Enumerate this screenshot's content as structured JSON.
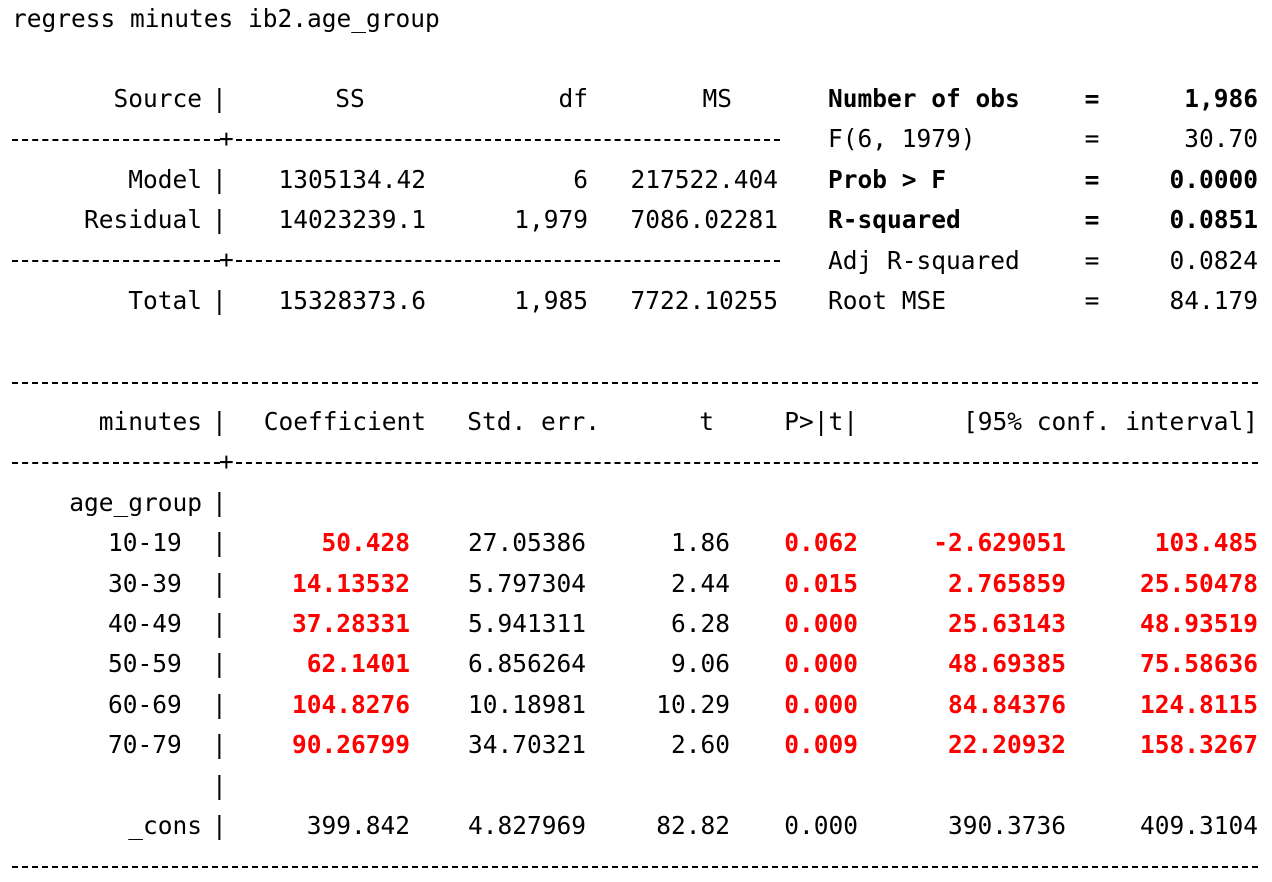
{
  "command": "regress minutes ib2.age_group",
  "anova": {
    "headers": {
      "source": "Source",
      "ss": "SS",
      "df": "df",
      "ms": "MS"
    },
    "rows": [
      {
        "source": "Model",
        "ss": "1305134.42",
        "df": "6",
        "ms": "217522.404"
      },
      {
        "source": "Residual",
        "ss": "14023239.1",
        "df": "1,979",
        "ms": "7086.02281"
      },
      {
        "source": "Total",
        "ss": "15328373.6",
        "df": "1,985",
        "ms": "7722.10255"
      }
    ]
  },
  "stats": [
    {
      "label": "Number of obs",
      "eq": "=",
      "value": "1,986",
      "bold": true
    },
    {
      "label": "F(6, 1979)",
      "eq": "=",
      "value": "30.70",
      "bold": false
    },
    {
      "label": "Prob > F",
      "eq": "=",
      "value": "0.0000",
      "bold": true
    },
    {
      "label": "R-squared",
      "eq": "=",
      "value": "0.0851",
      "bold": true
    },
    {
      "label": "Adj R-squared",
      "eq": "=",
      "value": "0.0824",
      "bold": false
    },
    {
      "label": "Root MSE",
      "eq": "=",
      "value": "84.179",
      "bold": false
    }
  ],
  "coef": {
    "headers": {
      "var": "minutes",
      "coef": "Coefficient",
      "se": "Std. err.",
      "t": "t",
      "p": "P>|t|",
      "ci": "[95% conf. interval]"
    },
    "group_label": "age_group",
    "rows": [
      {
        "label": "10-19",
        "coef": "50.428",
        "se": "27.05386",
        "t": "1.86",
        "p": "0.062",
        "lo": "-2.629051",
        "hi": "103.485"
      },
      {
        "label": "30-39",
        "coef": "14.13532",
        "se": "5.797304",
        "t": "2.44",
        "p": "0.015",
        "lo": "2.765859",
        "hi": "25.50478"
      },
      {
        "label": "40-49",
        "coef": "37.28331",
        "se": "5.941311",
        "t": "6.28",
        "p": "0.000",
        "lo": "25.63143",
        "hi": "48.93519"
      },
      {
        "label": "50-59",
        "coef": "62.1401",
        "se": "6.856264",
        "t": "9.06",
        "p": "0.000",
        "lo": "48.69385",
        "hi": "75.58636"
      },
      {
        "label": "60-69",
        "coef": "104.8276",
        "se": "10.18981",
        "t": "10.29",
        "p": "0.000",
        "lo": "84.84376",
        "hi": "124.8115"
      },
      {
        "label": "70-79",
        "coef": "90.26799",
        "se": "34.70321",
        "t": "2.60",
        "p": "0.009",
        "lo": "22.20932",
        "hi": "158.3267"
      }
    ],
    "cons": {
      "label": "_cons",
      "coef": "399.842",
      "se": "4.827969",
      "t": "82.82",
      "p": "0.000",
      "lo": "390.3736",
      "hi": "409.3104"
    }
  },
  "highlight_color": "#ff0000",
  "pipe": "|",
  "plus": "+"
}
